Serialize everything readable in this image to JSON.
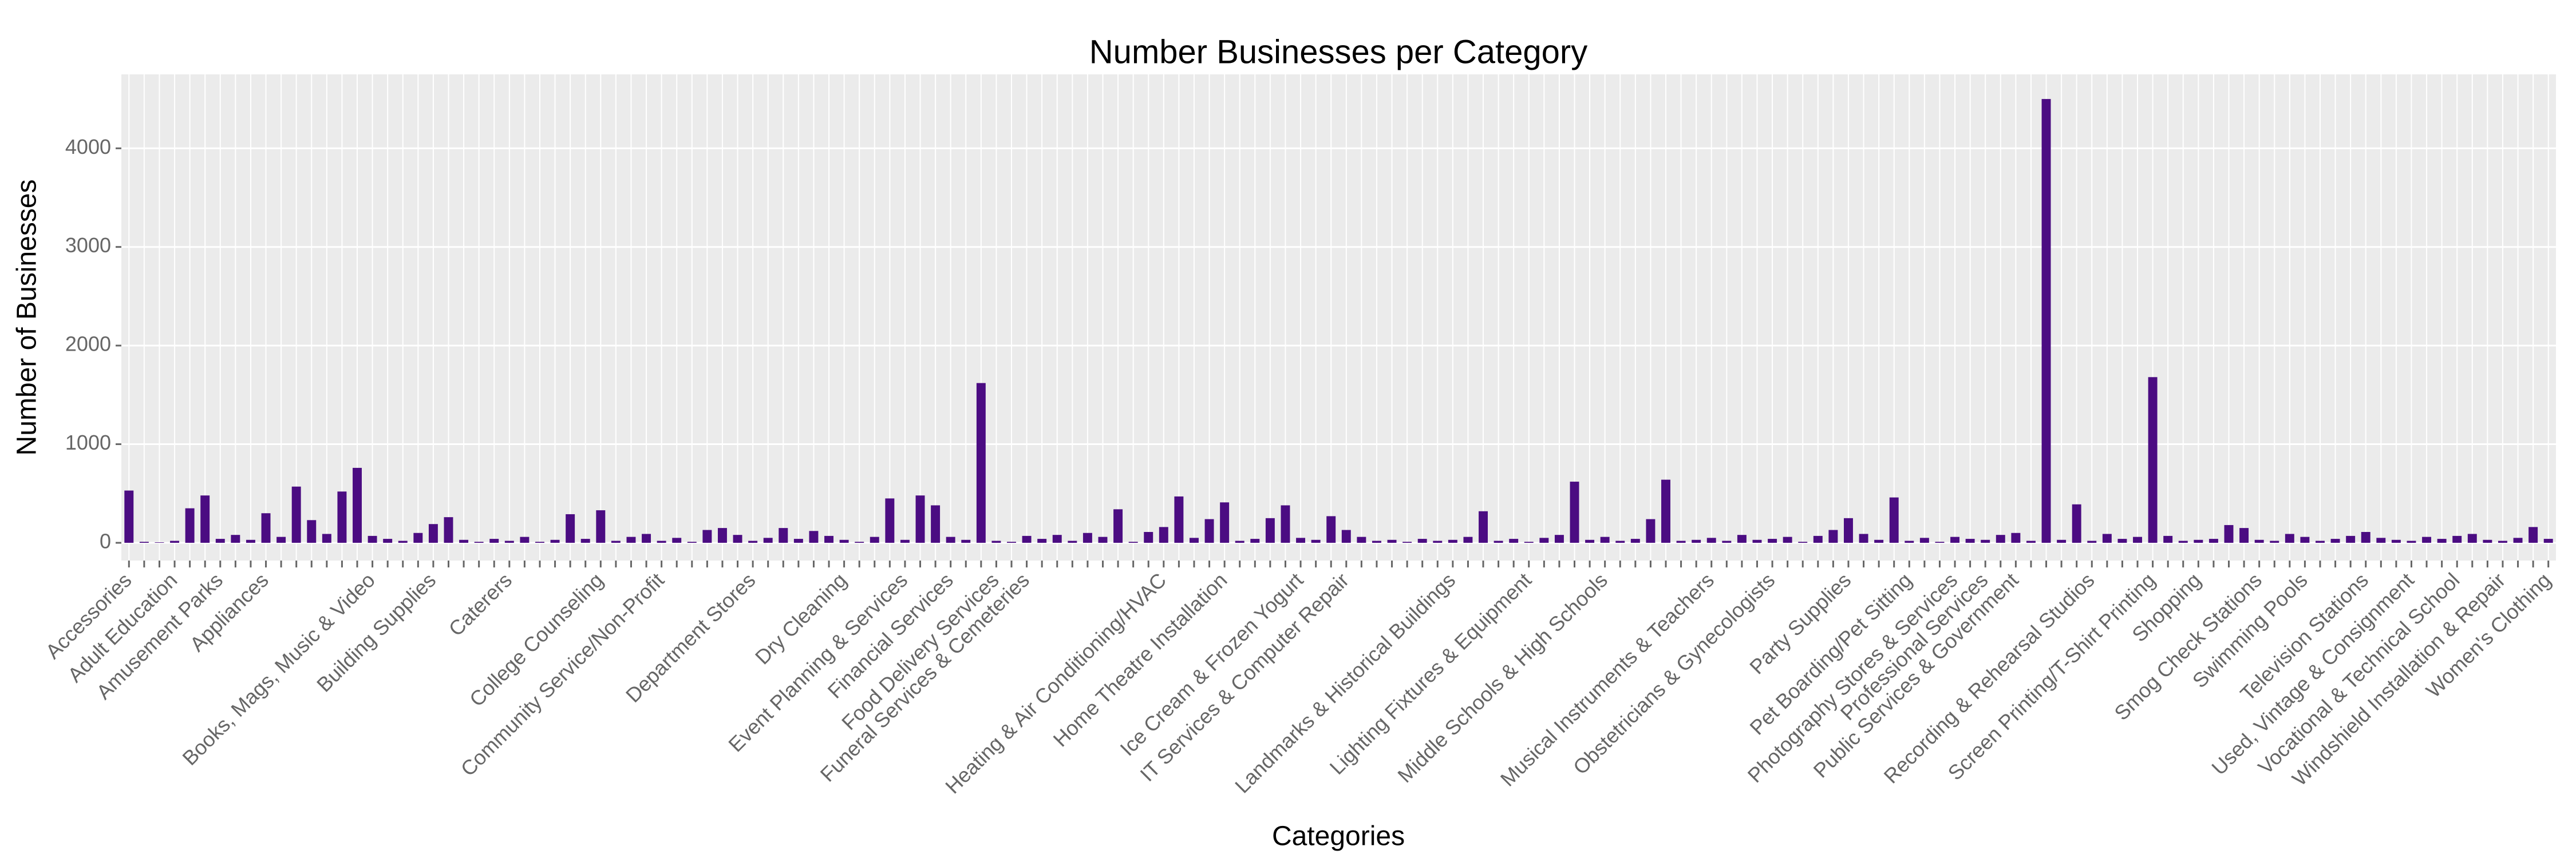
{
  "chart_data": {
    "type": "bar",
    "title": "Number Businesses per Category",
    "x_label": "Categories",
    "y_label": "Number of Businesses",
    "categories": [
      "Accessories",
      null,
      null,
      "Adult Education",
      null,
      null,
      "Amusement Parks",
      null,
      null,
      "Appliances",
      null,
      null,
      null,
      null,
      null,
      null,
      "Books, Mags, Music & Video",
      null,
      null,
      null,
      "Building Supplies",
      null,
      null,
      null,
      null,
      "Caterers",
      null,
      null,
      null,
      null,
      null,
      "College Counseling",
      null,
      null,
      null,
      "Community Service/Non-Profit",
      null,
      null,
      null,
      null,
      null,
      "Department Stores",
      null,
      null,
      null,
      null,
      null,
      "Dry Cleaning",
      null,
      null,
      null,
      "Event Planning & Services",
      null,
      null,
      "Financial Services",
      null,
      null,
      "Food Delivery Services",
      null,
      "Funeral Services & Cemeteries",
      null,
      null,
      null,
      null,
      null,
      null,
      null,
      null,
      "Heating & Air Conditioning/HVAC",
      null,
      null,
      null,
      "Home Theatre Installation",
      null,
      null,
      null,
      null,
      "Ice Cream & Frozen Yogurt",
      null,
      null,
      "IT Services & Computer Repair",
      null,
      null,
      null,
      null,
      null,
      null,
      "Landmarks & Historical Buildings",
      null,
      null,
      null,
      null,
      "Lighting Fixtures & Equipment",
      null,
      null,
      null,
      null,
      "Middle Schools & High Schools",
      null,
      null,
      null,
      null,
      null,
      null,
      "Musical Instruments & Teachers",
      null,
      null,
      null,
      "Obstetricians & Gynecologists",
      null,
      null,
      null,
      null,
      "Party Supplies",
      null,
      null,
      null,
      "Pet Boarding/Pet Sitting",
      null,
      null,
      "Photography Stores & Services",
      null,
      "Professional Services",
      null,
      "Public Services & Government",
      null,
      null,
      null,
      null,
      "Recording & Rehearsal Studios",
      null,
      null,
      null,
      "Screen Printing/T-Shirt Printing",
      null,
      null,
      "Shopping",
      null,
      null,
      null,
      "Smog Check Stations",
      null,
      null,
      "Swimming Pools",
      null,
      null,
      null,
      "Television Stations",
      null,
      null,
      "Used, Vintage & Consignment",
      null,
      null,
      "Vocational & Technical School",
      null,
      null,
      "Windshield Installation & Repair",
      null,
      null,
      "Women's Clothing"
    ],
    "values": [
      530,
      10,
      5,
      20,
      350,
      480,
      40,
      80,
      30,
      300,
      60,
      570,
      230,
      90,
      520,
      760,
      70,
      40,
      20,
      100,
      190,
      260,
      30,
      10,
      40,
      20,
      60,
      10,
      30,
      290,
      40,
      330,
      20,
      60,
      90,
      20,
      50,
      10,
      130,
      150,
      80,
      20,
      50,
      150,
      40,
      120,
      70,
      30,
      10,
      60,
      450,
      30,
      480,
      380,
      60,
      30,
      1620,
      20,
      10,
      70,
      40,
      80,
      20,
      100,
      60,
      340,
      10,
      110,
      160,
      470,
      50,
      240,
      410,
      20,
      40,
      250,
      380,
      50,
      30,
      270,
      130,
      60,
      20,
      30,
      10,
      40,
      20,
      30,
      60,
      320,
      20,
      40,
      10,
      50,
      80,
      620,
      30,
      60,
      20,
      40,
      240,
      640,
      20,
      30,
      50,
      20,
      80,
      30,
      40,
      60,
      10,
      70,
      130,
      250,
      90,
      30,
      460,
      20,
      50,
      10,
      60,
      40,
      30,
      80,
      100,
      20,
      4500,
      30,
      390,
      20,
      90,
      40,
      60,
      1680,
      70,
      20,
      30,
      40,
      180,
      150,
      30,
      20,
      90,
      60,
      20,
      40,
      70,
      110,
      50,
      30,
      20,
      60,
      40,
      70,
      90,
      30,
      20,
      50,
      160,
      40
    ],
    "color": "#4b0c82",
    "ylim": [
      -180,
      4750
    ],
    "yticks": [
      0,
      1000,
      2000,
      3000,
      4000
    ],
    "grid": true
  }
}
